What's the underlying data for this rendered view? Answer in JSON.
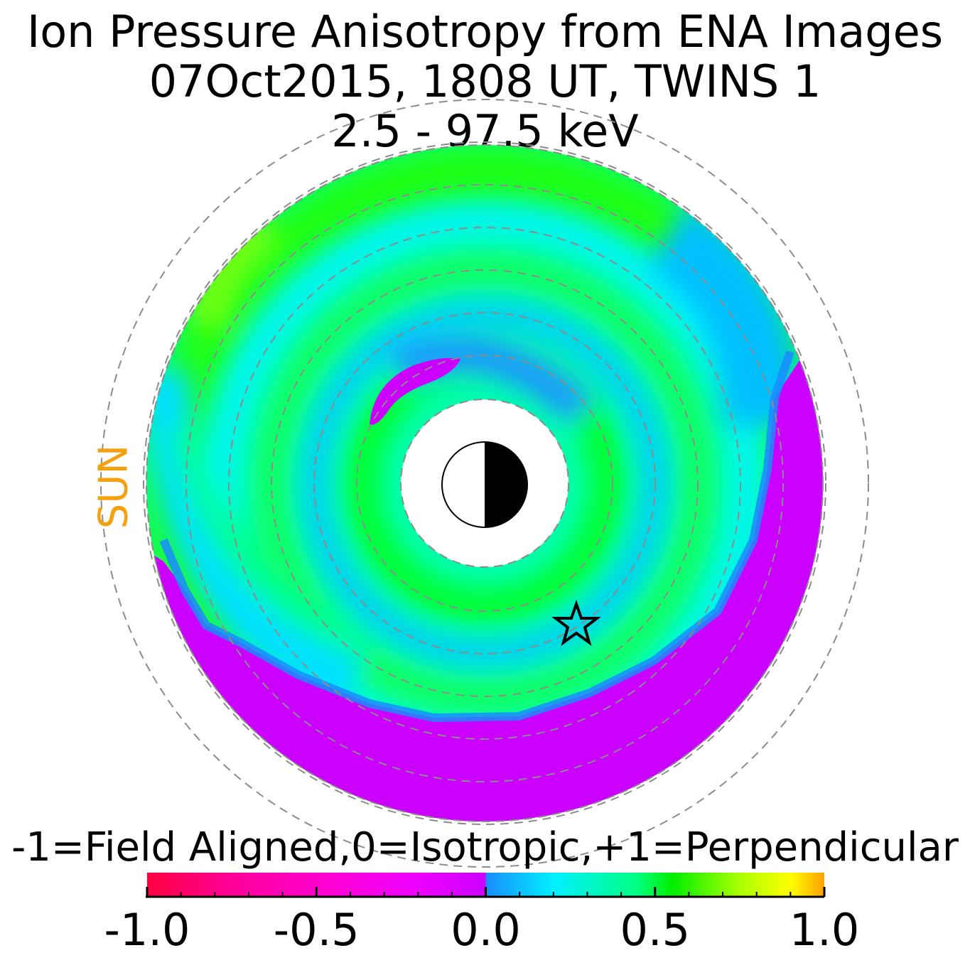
{
  "title": {
    "line1": "Ion Pressure Anisotropy from  ENA Images",
    "line2": "07Oct2015, 1808 UT,  TWINS 1",
    "line3": "2.5 - 97.5 keV"
  },
  "sun_label": "SUN",
  "colors": {
    "sun_label": "#f5a00f",
    "ring_dash": "#8c8c8c",
    "negative_region": "#cc00ff",
    "perpendicular_region": "#1aff3a"
  },
  "chart_data": {
    "type": "heatmap",
    "projection": "polar equatorial map, Sun to the left",
    "value_range": [
      -1.0,
      1.0
    ],
    "colorbar": {
      "label": "-1=Field Aligned,0=Isotropic,+1=Perpendicular",
      "ticks": [
        "-1.0",
        "-0.5",
        "0.0",
        "0.5",
        "1.0"
      ],
      "tick_values": [
        -1.0,
        -0.5,
        0.0,
        0.5,
        1.0
      ],
      "stops": [
        {
          "value": -1.0,
          "color": "#ff0040"
        },
        {
          "value": -0.75,
          "color": "#ff0099"
        },
        {
          "value": -0.5,
          "color": "#ff00cc"
        },
        {
          "value": -0.2,
          "color": "#ee00ff"
        },
        {
          "value": 0.0,
          "color": "#cc00ff"
        },
        {
          "value": 0.0,
          "color": "#1a8cff"
        },
        {
          "value": 0.2,
          "color": "#00f0ff"
        },
        {
          "value": 0.45,
          "color": "#00ff80"
        },
        {
          "value": 0.55,
          "color": "#00ee00"
        },
        {
          "value": 0.75,
          "color": "#aaff00"
        },
        {
          "value": 0.9,
          "color": "#ffff00"
        },
        {
          "value": 1.0,
          "color": "#ffa000"
        }
      ]
    },
    "grid_rings": 7,
    "markers": [
      {
        "type": "earth",
        "description": "day/night Earth symbol at center"
      },
      {
        "type": "star",
        "description": "satellite position marker"
      }
    ]
  }
}
